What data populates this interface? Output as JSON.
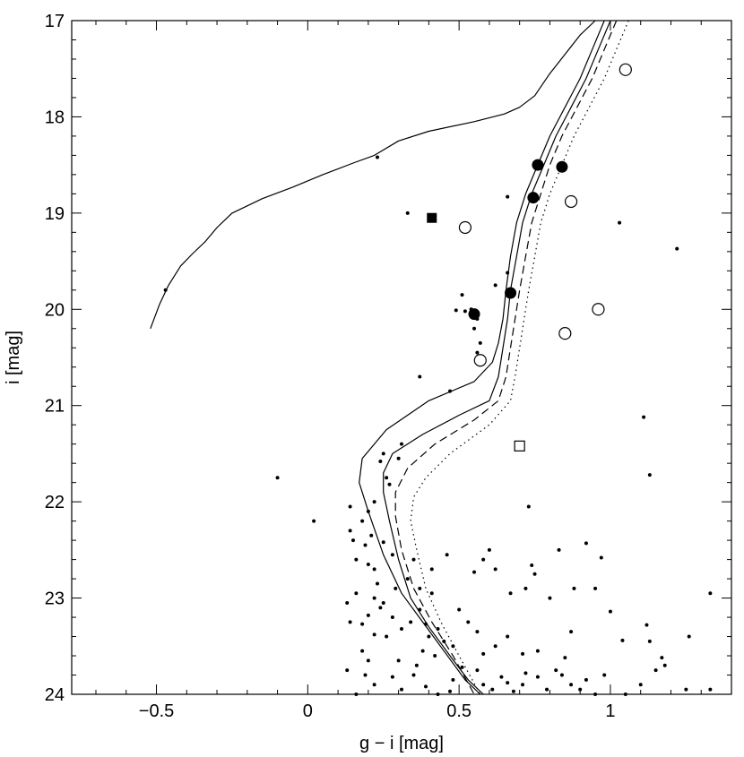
{
  "chart_data": {
    "type": "scatter",
    "xlabel": "g − i  [mag]",
    "ylabel": "i  [mag]",
    "xlim": [
      -0.78,
      1.4
    ],
    "ylim": [
      24,
      17
    ],
    "y_inverted": true,
    "grid": false,
    "legend": "none",
    "x_ticks": [
      -0.5,
      0,
      0.5,
      1
    ],
    "x_tick_labels": [
      "−0.5",
      "0",
      "0.5",
      "1"
    ],
    "y_ticks": [
      17,
      18,
      19,
      20,
      21,
      22,
      23,
      24
    ],
    "y_tick_labels": [
      "17",
      "18",
      "19",
      "20",
      "21",
      "22",
      "23",
      "24"
    ],
    "curves": [
      {
        "style": "solid",
        "points": [
          [
            -0.52,
            20.2
          ],
          [
            -0.49,
            19.95
          ],
          [
            -0.46,
            19.75
          ],
          [
            -0.42,
            19.55
          ],
          [
            -0.38,
            19.42
          ],
          [
            -0.34,
            19.3
          ],
          [
            -0.3,
            19.15
          ],
          [
            -0.25,
            19.0
          ],
          [
            -0.15,
            18.85
          ],
          [
            -0.05,
            18.73
          ],
          [
            0.05,
            18.6
          ],
          [
            0.15,
            18.48
          ],
          [
            0.22,
            18.4
          ],
          [
            0.3,
            18.25
          ],
          [
            0.4,
            18.15
          ],
          [
            0.55,
            18.05
          ],
          [
            0.65,
            17.97
          ],
          [
            0.7,
            17.9
          ],
          [
            0.75,
            17.78
          ],
          [
            0.8,
            17.55
          ],
          [
            0.85,
            17.35
          ],
          [
            0.9,
            17.15
          ],
          [
            0.95,
            17.0
          ]
        ]
      },
      {
        "style": "solid",
        "points": [
          [
            1.0,
            17.0
          ],
          [
            0.96,
            17.3
          ],
          [
            0.92,
            17.6
          ],
          [
            0.87,
            17.9
          ],
          [
            0.82,
            18.2
          ],
          [
            0.78,
            18.5
          ],
          [
            0.74,
            18.8
          ],
          [
            0.71,
            19.1
          ],
          [
            0.69,
            19.45
          ],
          [
            0.67,
            19.8
          ],
          [
            0.66,
            20.1
          ],
          [
            0.645,
            20.4
          ],
          [
            0.63,
            20.7
          ],
          [
            0.6,
            20.95
          ],
          [
            0.5,
            21.1
          ],
          [
            0.38,
            21.3
          ],
          [
            0.28,
            21.5
          ],
          [
            0.25,
            21.7
          ],
          [
            0.25,
            21.9
          ],
          [
            0.27,
            22.2
          ],
          [
            0.3,
            22.6
          ],
          [
            0.34,
            23.0
          ],
          [
            0.4,
            23.3
          ],
          [
            0.47,
            23.6
          ],
          [
            0.53,
            23.85
          ],
          [
            0.58,
            24.0
          ]
        ]
      },
      {
        "style": "solid",
        "points": [
          [
            0.98,
            17.0
          ],
          [
            0.94,
            17.3
          ],
          [
            0.9,
            17.6
          ],
          [
            0.85,
            17.9
          ],
          [
            0.8,
            18.2
          ],
          [
            0.76,
            18.5
          ],
          [
            0.72,
            18.8
          ],
          [
            0.69,
            19.1
          ],
          [
            0.67,
            19.45
          ],
          [
            0.655,
            19.8
          ],
          [
            0.645,
            20.1
          ],
          [
            0.63,
            20.35
          ],
          [
            0.61,
            20.55
          ],
          [
            0.55,
            20.75
          ],
          [
            0.4,
            20.95
          ],
          [
            0.26,
            21.25
          ],
          [
            0.18,
            21.55
          ],
          [
            0.17,
            21.8
          ],
          [
            0.2,
            22.1
          ],
          [
            0.25,
            22.55
          ],
          [
            0.31,
            22.95
          ],
          [
            0.38,
            23.25
          ],
          [
            0.45,
            23.55
          ],
          [
            0.52,
            23.85
          ],
          [
            0.57,
            24.0
          ]
        ]
      },
      {
        "style": "dashed",
        "points": [
          [
            1.02,
            17.0
          ],
          [
            0.98,
            17.3
          ],
          [
            0.94,
            17.6
          ],
          [
            0.89,
            17.9
          ],
          [
            0.84,
            18.2
          ],
          [
            0.8,
            18.5
          ],
          [
            0.77,
            18.8
          ],
          [
            0.74,
            19.1
          ],
          [
            0.72,
            19.45
          ],
          [
            0.7,
            19.8
          ],
          [
            0.685,
            20.1
          ],
          [
            0.67,
            20.4
          ],
          [
            0.655,
            20.7
          ],
          [
            0.63,
            20.95
          ],
          [
            0.55,
            21.15
          ],
          [
            0.42,
            21.4
          ],
          [
            0.33,
            21.65
          ],
          [
            0.29,
            21.9
          ],
          [
            0.29,
            22.15
          ],
          [
            0.31,
            22.5
          ],
          [
            0.35,
            22.9
          ],
          [
            0.41,
            23.25
          ],
          [
            0.48,
            23.6
          ],
          [
            0.55,
            24.0
          ]
        ]
      },
      {
        "style": "dotted",
        "points": [
          [
            1.06,
            17.0
          ],
          [
            1.02,
            17.3
          ],
          [
            0.98,
            17.6
          ],
          [
            0.93,
            17.9
          ],
          [
            0.88,
            18.2
          ],
          [
            0.84,
            18.5
          ],
          [
            0.8,
            18.8
          ],
          [
            0.77,
            19.1
          ],
          [
            0.75,
            19.45
          ],
          [
            0.73,
            19.8
          ],
          [
            0.715,
            20.1
          ],
          [
            0.7,
            20.4
          ],
          [
            0.685,
            20.7
          ],
          [
            0.67,
            20.95
          ],
          [
            0.6,
            21.2
          ],
          [
            0.47,
            21.5
          ],
          [
            0.39,
            21.75
          ],
          [
            0.35,
            21.95
          ],
          [
            0.34,
            22.2
          ],
          [
            0.36,
            22.5
          ],
          [
            0.39,
            22.9
          ],
          [
            0.44,
            23.25
          ],
          [
            0.5,
            23.6
          ],
          [
            0.57,
            24.0
          ]
        ]
      }
    ],
    "filled_circles": [
      [
        0.76,
        18.5
      ],
      [
        0.84,
        18.52
      ],
      [
        0.745,
        18.84
      ],
      [
        0.67,
        19.83
      ],
      [
        0.55,
        20.05
      ]
    ],
    "open_circles": [
      [
        1.05,
        17.51
      ],
      [
        0.87,
        18.88
      ],
      [
        0.52,
        19.15
      ],
      [
        0.96,
        20.0
      ],
      [
        0.85,
        20.25
      ],
      [
        0.57,
        20.53
      ]
    ],
    "filled_squares": [
      [
        0.41,
        19.05
      ]
    ],
    "open_squares": [
      [
        0.7,
        21.42
      ]
    ],
    "small_dots": [
      [
        -0.47,
        19.8
      ],
      [
        0.23,
        18.42
      ],
      [
        0.33,
        19.0
      ],
      [
        0.66,
        18.83
      ],
      [
        1.03,
        19.1
      ],
      [
        1.22,
        19.37
      ],
      [
        0.51,
        19.85
      ],
      [
        0.52,
        20.02
      ],
      [
        0.49,
        20.01
      ],
      [
        0.54,
        20.0
      ],
      [
        0.56,
        20.1
      ],
      [
        0.55,
        20.2
      ],
      [
        0.57,
        20.35
      ],
      [
        0.56,
        20.45
      ],
      [
        0.66,
        19.62
      ],
      [
        0.62,
        19.75
      ],
      [
        0.37,
        20.7
      ],
      [
        0.47,
        20.85
      ],
      [
        1.11,
        21.12
      ],
      [
        -0.1,
        21.75
      ],
      [
        0.31,
        21.4
      ],
      [
        0.3,
        21.55
      ],
      [
        0.25,
        21.5
      ],
      [
        0.24,
        21.58
      ],
      [
        0.26,
        21.75
      ],
      [
        0.27,
        21.82
      ],
      [
        0.73,
        22.05
      ],
      [
        1.13,
        21.72
      ],
      [
        0.02,
        22.2
      ],
      [
        0.14,
        22.05
      ],
      [
        0.14,
        22.3
      ],
      [
        0.18,
        22.2
      ],
      [
        0.15,
        22.4
      ],
      [
        0.19,
        22.45
      ],
      [
        0.16,
        22.6
      ],
      [
        0.2,
        22.65
      ],
      [
        0.22,
        22.7
      ],
      [
        0.23,
        22.85
      ],
      [
        0.16,
        22.95
      ],
      [
        0.22,
        23.0
      ],
      [
        0.25,
        23.05
      ],
      [
        0.29,
        22.9
      ],
      [
        0.33,
        22.8
      ],
      [
        0.37,
        22.9
      ],
      [
        0.41,
        22.95
      ],
      [
        0.13,
        23.05
      ],
      [
        0.14,
        23.25
      ],
      [
        0.18,
        23.27
      ],
      [
        0.2,
        23.18
      ],
      [
        0.24,
        23.1
      ],
      [
        0.28,
        23.2
      ],
      [
        0.31,
        23.32
      ],
      [
        0.34,
        23.25
      ],
      [
        0.37,
        23.12
      ],
      [
        0.39,
        23.27
      ],
      [
        0.4,
        23.4
      ],
      [
        0.43,
        23.32
      ],
      [
        0.45,
        23.45
      ],
      [
        0.48,
        23.5
      ],
      [
        0.42,
        23.6
      ],
      [
        0.38,
        23.55
      ],
      [
        0.36,
        23.7
      ],
      [
        0.3,
        23.65
      ],
      [
        0.26,
        23.4
      ],
      [
        0.22,
        23.38
      ],
      [
        0.18,
        23.55
      ],
      [
        0.2,
        23.65
      ],
      [
        0.13,
        23.75
      ],
      [
        0.19,
        23.8
      ],
      [
        0.22,
        23.9
      ],
      [
        0.16,
        24.0
      ],
      [
        0.28,
        23.82
      ],
      [
        0.31,
        23.95
      ],
      [
        0.35,
        23.8
      ],
      [
        0.39,
        23.92
      ],
      [
        0.43,
        24.0
      ],
      [
        0.48,
        23.85
      ],
      [
        0.47,
        23.97
      ],
      [
        0.51,
        23.72
      ],
      [
        0.56,
        23.75
      ],
      [
        0.58,
        23.9
      ],
      [
        0.61,
        23.95
      ],
      [
        0.64,
        23.82
      ],
      [
        0.66,
        23.88
      ],
      [
        0.68,
        23.97
      ],
      [
        0.71,
        23.9
      ],
      [
        0.72,
        23.78
      ],
      [
        0.76,
        23.82
      ],
      [
        0.79,
        23.95
      ],
      [
        0.82,
        23.75
      ],
      [
        0.84,
        23.8
      ],
      [
        0.87,
        23.9
      ],
      [
        0.9,
        23.95
      ],
      [
        0.92,
        23.85
      ],
      [
        0.95,
        24.0
      ],
      [
        0.98,
        23.8
      ],
      [
        1.05,
        24.0
      ],
      [
        1.1,
        23.9
      ],
      [
        1.15,
        23.75
      ],
      [
        1.18,
        23.7
      ],
      [
        1.25,
        23.95
      ],
      [
        1.33,
        23.95
      ],
      [
        0.55,
        22.73
      ],
      [
        0.58,
        22.6
      ],
      [
        0.62,
        22.7
      ],
      [
        0.67,
        22.95
      ],
      [
        0.72,
        22.9
      ],
      [
        0.75,
        22.75
      ],
      [
        0.8,
        23.0
      ],
      [
        0.83,
        22.5
      ],
      [
        0.87,
        23.35
      ],
      [
        0.92,
        22.43
      ],
      [
        0.95,
        22.9
      ],
      [
        1.0,
        23.14
      ],
      [
        1.04,
        23.44
      ],
      [
        1.12,
        23.28
      ],
      [
        1.13,
        23.45
      ],
      [
        1.17,
        23.62
      ],
      [
        1.26,
        23.4
      ],
      [
        1.33,
        22.95
      ],
      [
        0.5,
        23.12
      ],
      [
        0.53,
        23.25
      ],
      [
        0.56,
        23.35
      ],
      [
        0.58,
        23.58
      ],
      [
        0.62,
        23.5
      ],
      [
        0.66,
        23.4
      ],
      [
        0.71,
        23.58
      ],
      [
        0.76,
        23.55
      ],
      [
        0.85,
        23.62
      ],
      [
        0.88,
        22.9
      ],
      [
        0.97,
        22.58
      ],
      [
        0.74,
        22.66
      ],
      [
        0.6,
        22.5
      ],
      [
        0.46,
        22.55
      ],
      [
        0.41,
        22.7
      ],
      [
        0.35,
        22.6
      ],
      [
        0.28,
        22.55
      ],
      [
        0.25,
        22.42
      ],
      [
        0.21,
        22.35
      ],
      [
        0.2,
        22.1
      ],
      [
        0.22,
        22.0
      ]
    ]
  }
}
